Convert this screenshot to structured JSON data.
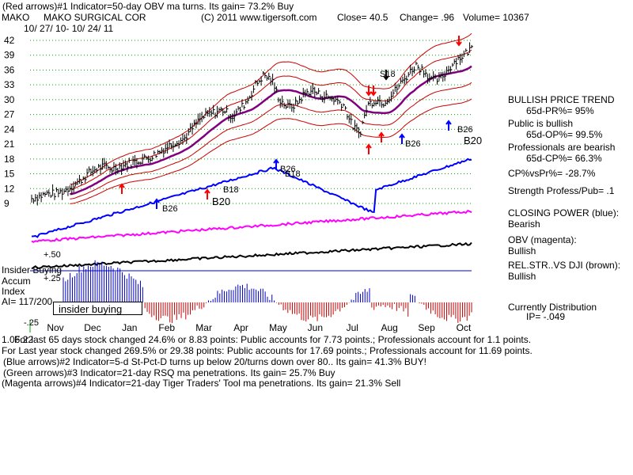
{
  "header": {
    "line1": "(Red arrows)#1 Indicator=50-day OBV ma turns. Its gain= 73.2% Buy",
    "ticker": "MAKO",
    "company": "MAKO SURGICAL COR",
    "copyright": "(C) 2011 www.tigersoft.com",
    "close": "Close=  40.5",
    "change": "Change= .96",
    "volume": "Volume= 10367",
    "date_range": "10/ 27/ 10-  10/ 24/ 11"
  },
  "right_panel": {
    "trend": "BULLISH PRICE TREND",
    "pr": "65d-PR%= 95%",
    "public": "Public is bullish",
    "op": "65d-OP%= 99.5%",
    "pros": "Professionals are bearish",
    "cp": "65d-CP%= 66.3%",
    "cpvspr": "CP%vsPr%= -28.7%",
    "strength": "Strength Profess/Pub= .1",
    "closing_power_label": "CLOSING POWER (blue):",
    "closing_power_value": "Bearish",
    "obv_label": "OBV (magenta):",
    "obv_value": "Bullish",
    "relstr_label": "REL.STR..VS DJI (brown):",
    "relstr_value": "Bullish",
    "distribution": "Currently Distribution",
    "ip": "IP= -.049"
  },
  "lower_left": {
    "insider_title": "Insider Buying",
    "accum": "Accum",
    "index": "Index",
    "ai": "AI= 117/200",
    "insider_box": "insider buying",
    "plus50": "+.50",
    "plus25": "+.25",
    "minus25": "-.25"
  },
  "footer": {
    "line1_prefix": "1.06.22",
    "line1": "For last 65 days stock changed  24.6% or  8.83 points:  Public accounts for  7.73 points.;  Professionals account for  1.1 points.",
    "line2": " For Last year stock changed  269.5% or  29.38 points:  Public accounts for  17.69 points.;  Professionals account for  11.69 points.",
    "line3": "(Blue arrows)#2 Indicator=5-d St-Pct-D turns up below 20/turns down over 80.. Its gain= 41.3% BUY!",
    "line4": "(Green arrows)#3 Indicator=21-day RSQ ma penetrations. Its gain= 25.7% Buy",
    "line5": "(Magenta arrows)#4 Indicator=21-day Tiger Traders' Tool ma penetrations. Its gain= 21.3% Sell"
  },
  "chart_labels": {
    "b26": "B26",
    "b20": "B20",
    "b18": "B18",
    "s18": "S18"
  },
  "colors": {
    "price": "#000000",
    "bands": "#cc0000",
    "ma": "#800080",
    "closing_power": "#0000ff",
    "obv": "#ff00ff",
    "relstr": "#000000",
    "accum_pos": "#0000cc",
    "accum_neg": "#cc0000",
    "grid": "#00aa00",
    "arrow_red": "#ff0000",
    "arrow_blue": "#0000ff"
  },
  "chart_data": {
    "type": "line",
    "title": "MAKO SURGICAL COR",
    "x_tick_labels": [
      "Nov",
      "Dec",
      "Jan",
      "Feb",
      "Mar",
      "Apr",
      "May",
      "Jun",
      "Jul",
      "Aug",
      "Sep",
      "Oct"
    ],
    "y_tick_labels": [
      "42",
      "39",
      "36",
      "33",
      "30",
      "27",
      "24",
      "21",
      "18",
      "15",
      "12",
      "9"
    ],
    "ylim": [
      9,
      42
    ],
    "grid": true,
    "series": [
      {
        "values": [
          10,
          10.5,
          11,
          11,
          11.5,
          12.5,
          13.5,
          15,
          16,
          16.5,
          16,
          16.5,
          17,
          17.5,
          18,
          18.5,
          19.5,
          20.5,
          21.5,
          22,
          24,
          26,
          27,
          27.5,
          28,
          26.5,
          28,
          30,
          33,
          35,
          34,
          30,
          28.5,
          29,
          31,
          32,
          31,
          30.5,
          30,
          29,
          25,
          23,
          29,
          30,
          29.5,
          31,
          33,
          35,
          37,
          36,
          34,
          34,
          36,
          38,
          39,
          40.5
        ]
      }
    ]
  }
}
